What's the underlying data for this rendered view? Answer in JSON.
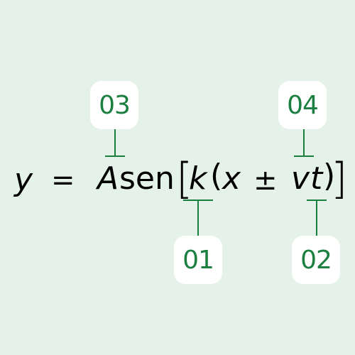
{
  "equation": {
    "y": "y",
    "equals": "=",
    "amplitude": "A",
    "function": "sen",
    "open_bracket": "[",
    "k": "k",
    "open_paren": "(",
    "x": "x",
    "plus_minus": "±",
    "v": "v",
    "t": "t",
    "close_paren": ")",
    "close_bracket": "]"
  },
  "labels": {
    "k_label": "01",
    "vt_label": "02",
    "amplitude_label": "03",
    "v_label": "04"
  },
  "colors": {
    "background": "#e5f2e9",
    "accent": "#1a7f3f",
    "badge_bg": "#ffffff"
  }
}
